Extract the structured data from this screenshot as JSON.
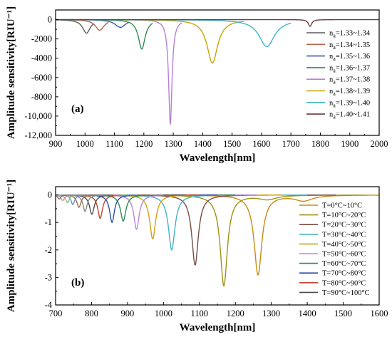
{
  "chart_data": [
    {
      "panel_label": "(a)",
      "type": "line",
      "xlabel": "Wavelength[nm]",
      "ylabel": "Amplitude sensitivity[RIU⁻¹]",
      "xlim": [
        900,
        2000
      ],
      "ylim": [
        -12000,
        1000
      ],
      "xticks": [
        900,
        1000,
        1100,
        1200,
        1300,
        1400,
        1500,
        1600,
        1700,
        1800,
        1900,
        2000
      ],
      "yticks": [
        0,
        -2000,
        -4000,
        -6000,
        -8000,
        -10000,
        -12000
      ],
      "ytick_labels": [
        "0",
        "-2000",
        "-4000",
        "-6000",
        "-8000",
        "-10,000",
        "-12,000"
      ],
      "legend_position": "right",
      "series": [
        {
          "name": "n",
          "sub": "a",
          "rest": "=1.33~1.34",
          "color": "#5a5a5a",
          "x_start": 900,
          "x_end": 1030,
          "dips": [
            {
              "x": 1005,
              "depth": 1400,
              "width": 16
            }
          ]
        },
        {
          "name": "n",
          "sub": "a",
          "rest": "=1.34~1.35",
          "color": "#b5614c",
          "x_start": 900,
          "x_end": 1080,
          "dips": [
            {
              "x": 1050,
              "depth": 1100,
              "width": 18
            }
          ]
        },
        {
          "name": "n",
          "sub": "a",
          "rest": "=1.35~1.36",
          "color": "#3a5bb0",
          "x_start": 900,
          "x_end": 1150,
          "dips": [
            {
              "x": 1120,
              "depth": 800,
              "width": 22
            }
          ]
        },
        {
          "name": "n",
          "sub": "a",
          "rest": "=1.36~1.37",
          "color": "#2e8b57",
          "x_start": 900,
          "x_end": 1230,
          "dips": [
            {
              "x": 1193,
              "depth": 3050,
              "width": 14
            }
          ]
        },
        {
          "name": "n",
          "sub": "a",
          "rest": "=1.37~1.38",
          "color": "#b57fd8",
          "x_start": 900,
          "x_end": 1330,
          "dips": [
            {
              "x": 1290,
              "depth": 10800,
              "width": 7
            }
          ]
        },
        {
          "name": "n",
          "sub": "a",
          "rest": "=1.38~1.39",
          "color": "#c9a300",
          "x_start": 900,
          "x_end": 1540,
          "dips": [
            {
              "x": 1433,
              "depth": 4500,
              "width": 22
            }
          ]
        },
        {
          "name": "n",
          "sub": "a",
          "rest": "=1.39~1.40",
          "color": "#3fb3c8",
          "x_start": 900,
          "x_end": 1700,
          "dips": [
            {
              "x": 1618,
              "depth": 2800,
              "width": 32
            }
          ]
        },
        {
          "name": "n",
          "sub": "a",
          "rest": "=1.40~1.41",
          "color": "#6b3a3a",
          "x_start": 900,
          "x_end": 2000,
          "dips": [
            {
              "x": 1765,
              "depth": 700,
              "width": 7
            }
          ]
        }
      ]
    },
    {
      "panel_label": "(b)",
      "type": "line",
      "xlabel": "Wavelength[nm]",
      "ylabel": "Amplitude sensitivity[RIU⁻¹]",
      "xlim": [
        700,
        1600
      ],
      "ylim": [
        -4,
        0.3
      ],
      "xticks": [
        700,
        800,
        900,
        1000,
        1100,
        1200,
        1300,
        1400,
        1500,
        1600
      ],
      "yticks": [
        0,
        -1,
        -2,
        -3,
        -4
      ],
      "ytick_labels": [
        "0",
        "-1",
        "-2",
        "-3",
        "-4"
      ],
      "legend_position": "right",
      "series": [
        {
          "name": "T=0°C~10°C",
          "color": "#c98a0f",
          "x_start": 700,
          "x_end": 1600,
          "dips": [
            {
              "x": 1263,
              "depth": 2.9,
              "width": 13
            },
            {
              "x": 1390,
              "depth": 0.2,
              "width": 30
            }
          ]
        },
        {
          "name": "T=10°C~20°C",
          "color": "#a09014",
          "x_start": 700,
          "x_end": 1560,
          "dips": [
            {
              "x": 1168,
              "depth": 3.3,
              "width": 12
            },
            {
              "x": 1290,
              "depth": 0.15,
              "width": 30
            }
          ]
        },
        {
          "name": "T=20°C~30°C",
          "color": "#7a4b45",
          "x_start": 700,
          "x_end": 1480,
          "dips": [
            {
              "x": 1088,
              "depth": 2.55,
              "width": 11
            }
          ]
        },
        {
          "name": "T=30°C~40°C",
          "color": "#45b3c4",
          "x_start": 700,
          "x_end": 1400,
          "dips": [
            {
              "x": 1023,
              "depth": 2.0,
              "width": 11
            }
          ]
        },
        {
          "name": "T=40°C~50°C",
          "color": "#d4a017",
          "x_start": 700,
          "x_end": 1330,
          "dips": [
            {
              "x": 970,
              "depth": 1.6,
              "width": 10
            }
          ]
        },
        {
          "name": "T=50°C~60°C",
          "color": "#b987d6",
          "x_start": 700,
          "x_end": 1260,
          "dips": [
            {
              "x": 925,
              "depth": 1.25,
              "width": 9
            }
          ]
        },
        {
          "name": "T=60°C~70°C",
          "color": "#2e8b57",
          "x_start": 700,
          "x_end": 1200,
          "dips": [
            {
              "x": 888,
              "depth": 0.95,
              "width": 9
            }
          ]
        },
        {
          "name": "T=70°C~80°C",
          "color": "#2b4fa8",
          "x_start": 700,
          "x_end": 1150,
          "dips": [
            {
              "x": 857,
              "depth": 1.0,
              "width": 8
            }
          ]
        },
        {
          "name": "T=80°C~90°C",
          "color": "#c0442f",
          "x_start": 700,
          "x_end": 1100,
          "dips": [
            {
              "x": 824,
              "depth": 0.85,
              "width": 8
            }
          ]
        },
        {
          "name": "T=90°C~100°C",
          "color": "#4d4d4d",
          "x_start": 700,
          "x_end": 1060,
          "dips": [
            {
              "x": 801,
              "depth": 0.7,
              "width": 8
            }
          ]
        },
        {
          "name": "",
          "color": "#888888",
          "x_start": 700,
          "x_end": 1000,
          "dips": [
            {
              "x": 782,
              "depth": 0.6,
              "width": 7
            }
          ]
        },
        {
          "name": "",
          "color": "#9b6b4a",
          "x_start": 700,
          "x_end": 960,
          "dips": [
            {
              "x": 765,
              "depth": 0.45,
              "width": 7
            }
          ]
        },
        {
          "name": "",
          "color": "#6d8fcf",
          "x_start": 700,
          "x_end": 930,
          "dips": [
            {
              "x": 748,
              "depth": 0.35,
              "width": 6
            }
          ]
        },
        {
          "name": "",
          "color": "#7fbf7f",
          "x_start": 700,
          "x_end": 900,
          "dips": [
            {
              "x": 733,
              "depth": 0.28,
              "width": 6
            }
          ]
        },
        {
          "name": "",
          "color": "#d98c8c",
          "x_start": 700,
          "x_end": 880,
          "dips": [
            {
              "x": 720,
              "depth": 0.2,
              "width": 6
            }
          ]
        },
        {
          "name": "",
          "color": "#777777",
          "x_start": 700,
          "x_end": 860,
          "dips": [
            {
              "x": 710,
              "depth": 0.15,
              "width": 5
            }
          ]
        }
      ]
    }
  ]
}
